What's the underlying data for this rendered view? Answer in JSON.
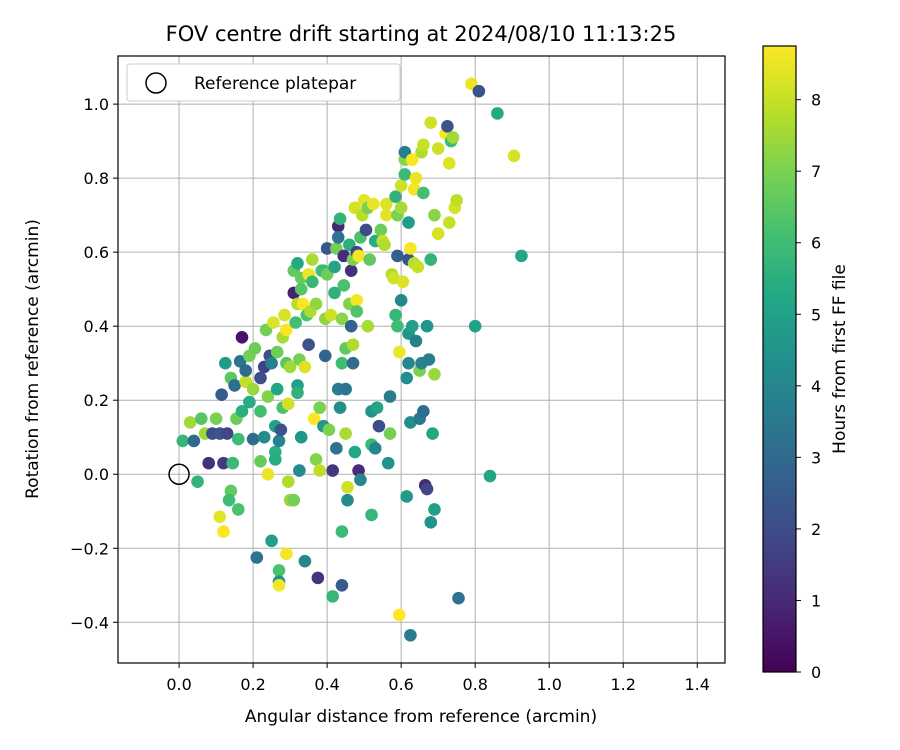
{
  "chart_data": {
    "type": "scatter",
    "title": "FOV centre drift starting at 2024/08/10 11:13:25",
    "xlabel": "Angular distance from reference (arcmin)",
    "ylabel": "Rotation from reference (arcmin)",
    "xlim": [
      -0.165,
      1.475
    ],
    "ylim": [
      -0.51,
      1.13
    ],
    "xticks": [
      0.0,
      0.2,
      0.4,
      0.6,
      0.8,
      1.0,
      1.2,
      1.4
    ],
    "xtick_labels": [
      "0.0",
      "0.2",
      "0.4",
      "0.6",
      "0.8",
      "1.0",
      "1.2",
      "1.4"
    ],
    "yticks": [
      -0.4,
      -0.2,
      0.0,
      0.2,
      0.4,
      0.6,
      0.8,
      1.0
    ],
    "ytick_labels": [
      "−0.4",
      "−0.2",
      "0.0",
      "0.2",
      "0.4",
      "0.6",
      "0.8",
      "1.0"
    ],
    "grid": true,
    "legend": {
      "position": "top-left",
      "entries": [
        "Reference platepar"
      ]
    },
    "reference_point": {
      "x": 0.0,
      "y": 0.0
    },
    "colorbar": {
      "label": "Hours from first FF file",
      "min": 0,
      "max": 8.75,
      "ticks": [
        0,
        1,
        2,
        3,
        4,
        5,
        6,
        7,
        8
      ],
      "tick_labels": [
        "0",
        "1",
        "2",
        "3",
        "4",
        "5",
        "6",
        "7",
        "8"
      ],
      "colormap": "viridis"
    },
    "points": [
      {
        "x": 0.01,
        "y": 0.09,
        "h": 5.8
      },
      {
        "x": 0.03,
        "y": 0.14,
        "h": 7.5
      },
      {
        "x": 0.04,
        "y": 0.09,
        "h": 3.0
      },
      {
        "x": 0.05,
        "y": -0.02,
        "h": 5.7
      },
      {
        "x": 0.06,
        "y": 0.15,
        "h": 6.4
      },
      {
        "x": 0.07,
        "y": 0.11,
        "h": 7.5
      },
      {
        "x": 0.08,
        "y": 0.03,
        "h": 1.2
      },
      {
        "x": 0.09,
        "y": 0.11,
        "h": 2.0
      },
      {
        "x": 0.1,
        "y": 0.15,
        "h": 7.0
      },
      {
        "x": 0.11,
        "y": -0.115,
        "h": 8.4
      },
      {
        "x": 0.11,
        "y": 0.11,
        "h": 2.3
      },
      {
        "x": 0.115,
        "y": 0.215,
        "h": 2.5
      },
      {
        "x": 0.12,
        "y": -0.155,
        "h": 8.7
      },
      {
        "x": 0.12,
        "y": 0.03,
        "h": 1.5
      },
      {
        "x": 0.125,
        "y": 0.3,
        "h": 4.8
      },
      {
        "x": 0.13,
        "y": 0.11,
        "h": 1.8
      },
      {
        "x": 0.14,
        "y": -0.045,
        "h": 6.6
      },
      {
        "x": 0.135,
        "y": -0.07,
        "h": 6.0
      },
      {
        "x": 0.14,
        "y": 0.26,
        "h": 6.5
      },
      {
        "x": 0.145,
        "y": 0.03,
        "h": 5.9
      },
      {
        "x": 0.15,
        "y": 0.24,
        "h": 3.2
      },
      {
        "x": 0.155,
        "y": 0.15,
        "h": 6.8
      },
      {
        "x": 0.16,
        "y": 0.095,
        "h": 6.0
      },
      {
        "x": 0.16,
        "y": -0.095,
        "h": 6.2
      },
      {
        "x": 0.165,
        "y": 0.305,
        "h": 3.4
      },
      {
        "x": 0.17,
        "y": 0.17,
        "h": 5.5
      },
      {
        "x": 0.17,
        "y": 0.37,
        "h": 0.5
      },
      {
        "x": 0.18,
        "y": 0.25,
        "h": 8.0
      },
      {
        "x": 0.18,
        "y": 0.28,
        "h": 3.0
      },
      {
        "x": 0.19,
        "y": 0.195,
        "h": 5.4
      },
      {
        "x": 0.19,
        "y": 0.32,
        "h": 6.9
      },
      {
        "x": 0.2,
        "y": 0.095,
        "h": 3.1
      },
      {
        "x": 0.2,
        "y": 0.23,
        "h": 7.4
      },
      {
        "x": 0.205,
        "y": 0.34,
        "h": 6.8
      },
      {
        "x": 0.21,
        "y": -0.225,
        "h": 3.3
      },
      {
        "x": 0.22,
        "y": 0.035,
        "h": 6.7
      },
      {
        "x": 0.22,
        "y": 0.26,
        "h": 2.1
      },
      {
        "x": 0.22,
        "y": 0.17,
        "h": 6.1
      },
      {
        "x": 0.23,
        "y": 0.29,
        "h": 1.7
      },
      {
        "x": 0.23,
        "y": 0.1,
        "h": 4.2
      },
      {
        "x": 0.235,
        "y": 0.39,
        "h": 6.9
      },
      {
        "x": 0.24,
        "y": 0.21,
        "h": 7.1
      },
      {
        "x": 0.24,
        "y": 0.0,
        "h": 8.5
      },
      {
        "x": 0.245,
        "y": 0.32,
        "h": 2.0
      },
      {
        "x": 0.25,
        "y": -0.18,
        "h": 5.0
      },
      {
        "x": 0.25,
        "y": 0.3,
        "h": 3.8
      },
      {
        "x": 0.255,
        "y": 0.41,
        "h": 8.3
      },
      {
        "x": 0.26,
        "y": 0.13,
        "h": 5.0
      },
      {
        "x": 0.26,
        "y": 0.06,
        "h": 5.5
      },
      {
        "x": 0.26,
        "y": 0.04,
        "h": 5.4
      },
      {
        "x": 0.265,
        "y": 0.23,
        "h": 5.2
      },
      {
        "x": 0.265,
        "y": 0.33,
        "h": 6.8
      },
      {
        "x": 0.27,
        "y": -0.26,
        "h": 6.2
      },
      {
        "x": 0.27,
        "y": -0.29,
        "h": 4.5
      },
      {
        "x": 0.27,
        "y": -0.3,
        "h": 8.6
      },
      {
        "x": 0.27,
        "y": 0.09,
        "h": 3.9
      },
      {
        "x": 0.275,
        "y": 0.12,
        "h": 2.3
      },
      {
        "x": 0.28,
        "y": 0.37,
        "h": 7.6
      },
      {
        "x": 0.28,
        "y": 0.18,
        "h": 6.2
      },
      {
        "x": 0.285,
        "y": 0.43,
        "h": 8.2
      },
      {
        "x": 0.29,
        "y": 0.39,
        "h": 8.7
      },
      {
        "x": 0.29,
        "y": 0.3,
        "h": 6.5
      },
      {
        "x": 0.29,
        "y": -0.215,
        "h": 8.6
      },
      {
        "x": 0.295,
        "y": -0.02,
        "h": 7.7
      },
      {
        "x": 0.295,
        "y": 0.19,
        "h": 8.1
      },
      {
        "x": 0.3,
        "y": 0.29,
        "h": 7.5
      },
      {
        "x": 0.3,
        "y": -0.07,
        "h": 7.4
      },
      {
        "x": 0.31,
        "y": -0.07,
        "h": 6.9
      },
      {
        "x": 0.31,
        "y": 0.49,
        "h": 0.8
      },
      {
        "x": 0.31,
        "y": 0.55,
        "h": 6.6
      },
      {
        "x": 0.315,
        "y": 0.41,
        "h": 6.1
      },
      {
        "x": 0.32,
        "y": 0.46,
        "h": 7.8
      },
      {
        "x": 0.32,
        "y": 0.57,
        "h": 5.3
      },
      {
        "x": 0.32,
        "y": 0.24,
        "h": 5.0
      },
      {
        "x": 0.32,
        "y": 0.22,
        "h": 5.6
      },
      {
        "x": 0.325,
        "y": 0.31,
        "h": 6.9
      },
      {
        "x": 0.325,
        "y": 0.01,
        "h": 4.2
      },
      {
        "x": 0.33,
        "y": 0.1,
        "h": 4.6
      },
      {
        "x": 0.33,
        "y": 0.53,
        "h": 6.7
      },
      {
        "x": 0.33,
        "y": 0.5,
        "h": 6.4
      },
      {
        "x": 0.335,
        "y": 0.46,
        "h": 8.7
      },
      {
        "x": 0.34,
        "y": 0.29,
        "h": 8.3
      },
      {
        "x": 0.34,
        "y": -0.235,
        "h": 4.0
      },
      {
        "x": 0.345,
        "y": 0.43,
        "h": 6.3
      },
      {
        "x": 0.35,
        "y": 0.35,
        "h": 2.2
      },
      {
        "x": 0.35,
        "y": 0.54,
        "h": 8.5
      },
      {
        "x": 0.355,
        "y": 0.44,
        "h": 7.7
      },
      {
        "x": 0.36,
        "y": 0.58,
        "h": 7.6
      },
      {
        "x": 0.36,
        "y": 0.52,
        "h": 5.8
      },
      {
        "x": 0.365,
        "y": 0.15,
        "h": 8.7
      },
      {
        "x": 0.37,
        "y": 0.46,
        "h": 7.3
      },
      {
        "x": 0.37,
        "y": 0.04,
        "h": 7.1
      },
      {
        "x": 0.375,
        "y": -0.28,
        "h": 1.3
      },
      {
        "x": 0.38,
        "y": 0.18,
        "h": 7.0
      },
      {
        "x": 0.38,
        "y": 0.01,
        "h": 7.9
      },
      {
        "x": 0.385,
        "y": 0.55,
        "h": 6.3
      },
      {
        "x": 0.39,
        "y": 0.13,
        "h": 4.6
      },
      {
        "x": 0.39,
        "y": 0.55,
        "h": 5.9
      },
      {
        "x": 0.395,
        "y": 0.32,
        "h": 2.8
      },
      {
        "x": 0.395,
        "y": 0.42,
        "h": 7.3
      },
      {
        "x": 0.4,
        "y": 0.61,
        "h": 2.3
      },
      {
        "x": 0.4,
        "y": 0.54,
        "h": 6.8
      },
      {
        "x": 0.405,
        "y": 0.12,
        "h": 7.0
      },
      {
        "x": 0.41,
        "y": 0.43,
        "h": 8.1
      },
      {
        "x": 0.415,
        "y": -0.33,
        "h": 5.8
      },
      {
        "x": 0.415,
        "y": 0.01,
        "h": 1.4
      },
      {
        "x": 0.42,
        "y": 0.49,
        "h": 5.6
      },
      {
        "x": 0.42,
        "y": 0.56,
        "h": 5.1
      },
      {
        "x": 0.425,
        "y": 0.61,
        "h": 6.9
      },
      {
        "x": 0.425,
        "y": 0.07,
        "h": 3.3
      },
      {
        "x": 0.43,
        "y": 0.23,
        "h": 3.6
      },
      {
        "x": 0.43,
        "y": 0.67,
        "h": 0.9
      },
      {
        "x": 0.43,
        "y": 0.64,
        "h": 3.3
      },
      {
        "x": 0.435,
        "y": 0.69,
        "h": 5.7
      },
      {
        "x": 0.435,
        "y": 0.18,
        "h": 4.3
      },
      {
        "x": 0.44,
        "y": 0.42,
        "h": 7.2
      },
      {
        "x": 0.44,
        "y": 0.3,
        "h": 6.0
      },
      {
        "x": 0.44,
        "y": -0.155,
        "h": 5.9
      },
      {
        "x": 0.44,
        "y": -0.3,
        "h": 2.5
      },
      {
        "x": 0.445,
        "y": 0.59,
        "h": 1.1
      },
      {
        "x": 0.445,
        "y": 0.51,
        "h": 6.2
      },
      {
        "x": 0.45,
        "y": 0.23,
        "h": 3.4
      },
      {
        "x": 0.45,
        "y": 0.34,
        "h": 6.6
      },
      {
        "x": 0.45,
        "y": 0.11,
        "h": 7.6
      },
      {
        "x": 0.455,
        "y": -0.07,
        "h": 4.2
      },
      {
        "x": 0.455,
        "y": -0.035,
        "h": 8.1
      },
      {
        "x": 0.46,
        "y": 0.62,
        "h": 5.5
      },
      {
        "x": 0.46,
        "y": 0.46,
        "h": 7.1
      },
      {
        "x": 0.465,
        "y": 0.55,
        "h": 1.2
      },
      {
        "x": 0.465,
        "y": 0.4,
        "h": 2.7
      },
      {
        "x": 0.47,
        "y": 0.58,
        "h": 7.0
      },
      {
        "x": 0.47,
        "y": 0.35,
        "h": 7.7
      },
      {
        "x": 0.47,
        "y": 0.3,
        "h": 3.0
      },
      {
        "x": 0.475,
        "y": 0.72,
        "h": 8.2
      },
      {
        "x": 0.475,
        "y": 0.06,
        "h": 5.2
      },
      {
        "x": 0.48,
        "y": 0.47,
        "h": 8.6
      },
      {
        "x": 0.48,
        "y": 0.44,
        "h": 6.3
      },
      {
        "x": 0.48,
        "y": 0.6,
        "h": 1.8
      },
      {
        "x": 0.485,
        "y": 0.59,
        "h": 8.6
      },
      {
        "x": 0.485,
        "y": 0.01,
        "h": 1.1
      },
      {
        "x": 0.49,
        "y": -0.015,
        "h": 4.0
      },
      {
        "x": 0.49,
        "y": 0.64,
        "h": 6.2
      },
      {
        "x": 0.495,
        "y": 0.7,
        "h": 7.8
      },
      {
        "x": 0.5,
        "y": 0.74,
        "h": 8.4
      },
      {
        "x": 0.505,
        "y": 0.66,
        "h": 2.0
      },
      {
        "x": 0.51,
        "y": 0.4,
        "h": 7.6
      },
      {
        "x": 0.51,
        "y": 0.72,
        "h": 7.0
      },
      {
        "x": 0.515,
        "y": 0.58,
        "h": 6.6
      },
      {
        "x": 0.52,
        "y": 0.08,
        "h": 5.9
      },
      {
        "x": 0.52,
        "y": -0.11,
        "h": 5.8
      },
      {
        "x": 0.52,
        "y": 0.17,
        "h": 4.4
      },
      {
        "x": 0.525,
        "y": 0.73,
        "h": 8.5
      },
      {
        "x": 0.53,
        "y": 0.63,
        "h": 5.4
      },
      {
        "x": 0.53,
        "y": 0.07,
        "h": 4.0
      },
      {
        "x": 0.535,
        "y": 0.18,
        "h": 5.1
      },
      {
        "x": 0.54,
        "y": 0.13,
        "h": 2.0
      },
      {
        "x": 0.545,
        "y": 0.66,
        "h": 6.8
      },
      {
        "x": 0.55,
        "y": 0.63,
        "h": 8.0
      },
      {
        "x": 0.555,
        "y": 0.62,
        "h": 7.7
      },
      {
        "x": 0.56,
        "y": 0.7,
        "h": 8.4
      },
      {
        "x": 0.56,
        "y": 0.73,
        "h": 8.3
      },
      {
        "x": 0.565,
        "y": 0.03,
        "h": 4.4
      },
      {
        "x": 0.57,
        "y": 0.21,
        "h": 3.6
      },
      {
        "x": 0.57,
        "y": 0.11,
        "h": 6.9
      },
      {
        "x": 0.575,
        "y": 0.54,
        "h": 7.7
      },
      {
        "x": 0.58,
        "y": 0.53,
        "h": 8.1
      },
      {
        "x": 0.585,
        "y": 0.75,
        "h": 5.6
      },
      {
        "x": 0.585,
        "y": 0.43,
        "h": 5.8
      },
      {
        "x": 0.59,
        "y": 0.4,
        "h": 6.0
      },
      {
        "x": 0.59,
        "y": 0.7,
        "h": 7.0
      },
      {
        "x": 0.59,
        "y": 0.59,
        "h": 2.6
      },
      {
        "x": 0.595,
        "y": 0.33,
        "h": 8.5
      },
      {
        "x": 0.595,
        "y": -0.38,
        "h": 8.8
      },
      {
        "x": 0.6,
        "y": 0.47,
        "h": 4.1
      },
      {
        "x": 0.6,
        "y": 0.72,
        "h": 7.6
      },
      {
        "x": 0.6,
        "y": 0.78,
        "h": 8.1
      },
      {
        "x": 0.605,
        "y": 0.52,
        "h": 8.3
      },
      {
        "x": 0.61,
        "y": 0.85,
        "h": 7.2
      },
      {
        "x": 0.61,
        "y": 0.87,
        "h": 3.7
      },
      {
        "x": 0.61,
        "y": 0.81,
        "h": 5.9
      },
      {
        "x": 0.615,
        "y": 0.26,
        "h": 4.3
      },
      {
        "x": 0.615,
        "y": -0.06,
        "h": 4.7
      },
      {
        "x": 0.62,
        "y": 0.38,
        "h": 4.6
      },
      {
        "x": 0.62,
        "y": 0.68,
        "h": 4.8
      },
      {
        "x": 0.62,
        "y": 0.3,
        "h": 4.0
      },
      {
        "x": 0.62,
        "y": 0.58,
        "h": 2.3
      },
      {
        "x": 0.625,
        "y": 0.14,
        "h": 4.2
      },
      {
        "x": 0.625,
        "y": 0.61,
        "h": 8.6
      },
      {
        "x": 0.625,
        "y": -0.435,
        "h": 3.6
      },
      {
        "x": 0.63,
        "y": 0.85,
        "h": 8.7
      },
      {
        "x": 0.63,
        "y": 0.4,
        "h": 4.9
      },
      {
        "x": 0.635,
        "y": 0.57,
        "h": 7.8
      },
      {
        "x": 0.635,
        "y": 0.77,
        "h": 8.6
      },
      {
        "x": 0.64,
        "y": 0.8,
        "h": 8.5
      },
      {
        "x": 0.64,
        "y": 0.36,
        "h": 3.8
      },
      {
        "x": 0.645,
        "y": 0.56,
        "h": 8.0
      },
      {
        "x": 0.65,
        "y": 0.15,
        "h": 3.5
      },
      {
        "x": 0.65,
        "y": 0.28,
        "h": 7.0
      },
      {
        "x": 0.655,
        "y": 0.3,
        "h": 3.9
      },
      {
        "x": 0.655,
        "y": 0.87,
        "h": 7.7
      },
      {
        "x": 0.66,
        "y": 0.89,
        "h": 8.0
      },
      {
        "x": 0.66,
        "y": 0.76,
        "h": 6.1
      },
      {
        "x": 0.66,
        "y": 0.17,
        "h": 3.1
      },
      {
        "x": 0.665,
        "y": -0.03,
        "h": 1.0
      },
      {
        "x": 0.67,
        "y": 0.4,
        "h": 4.5
      },
      {
        "x": 0.67,
        "y": -0.04,
        "h": 1.8
      },
      {
        "x": 0.675,
        "y": 0.31,
        "h": 3.7
      },
      {
        "x": 0.68,
        "y": 0.95,
        "h": 8.1
      },
      {
        "x": 0.68,
        "y": 0.58,
        "h": 5.7
      },
      {
        "x": 0.68,
        "y": -0.13,
        "h": 4.4
      },
      {
        "x": 0.685,
        "y": 0.11,
        "h": 5.2
      },
      {
        "x": 0.69,
        "y": 0.7,
        "h": 7.2
      },
      {
        "x": 0.69,
        "y": 0.27,
        "h": 7.4
      },
      {
        "x": 0.69,
        "y": -0.095,
        "h": 5.0
      },
      {
        "x": 0.7,
        "y": 0.65,
        "h": 8.2
      },
      {
        "x": 0.7,
        "y": 0.88,
        "h": 8.1
      },
      {
        "x": 0.72,
        "y": 0.92,
        "h": 8.6
      },
      {
        "x": 0.725,
        "y": 0.94,
        "h": 2.3
      },
      {
        "x": 0.73,
        "y": 0.84,
        "h": 8.3
      },
      {
        "x": 0.73,
        "y": 0.68,
        "h": 8.0
      },
      {
        "x": 0.735,
        "y": 0.9,
        "h": 6.0
      },
      {
        "x": 0.74,
        "y": 0.91,
        "h": 7.5
      },
      {
        "x": 0.745,
        "y": 0.72,
        "h": 8.2
      },
      {
        "x": 0.75,
        "y": 0.74,
        "h": 7.9
      },
      {
        "x": 0.755,
        "y": -0.335,
        "h": 3.3
      },
      {
        "x": 0.79,
        "y": 1.055,
        "h": 8.5
      },
      {
        "x": 0.8,
        "y": 0.4,
        "h": 5.0
      },
      {
        "x": 0.81,
        "y": 1.035,
        "h": 2.2
      },
      {
        "x": 0.84,
        "y": -0.005,
        "h": 5.1
      },
      {
        "x": 0.86,
        "y": 0.975,
        "h": 5.3
      },
      {
        "x": 0.905,
        "y": 0.86,
        "h": 8.2
      },
      {
        "x": 0.925,
        "y": 0.59,
        "h": 5.2
      }
    ]
  }
}
